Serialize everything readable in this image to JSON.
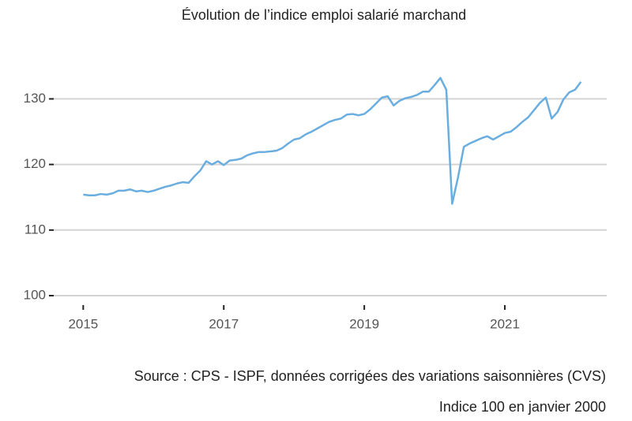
{
  "chart_data": {
    "type": "line",
    "title": "Évolution de l’indice emploi salarié marchand",
    "source": "Source : CPS - ISPF, données corrigées des variations saisonnières (CVS)",
    "note": "Indice 100 en janvier 2000",
    "x": [
      2015,
      2015.083,
      2015.167,
      2015.25,
      2015.333,
      2015.417,
      2015.5,
      2015.583,
      2015.667,
      2015.75,
      2015.833,
      2015.917,
      2016,
      2016.083,
      2016.167,
      2016.25,
      2016.333,
      2016.417,
      2016.5,
      2016.583,
      2016.667,
      2016.75,
      2016.833,
      2016.917,
      2017,
      2017.083,
      2017.167,
      2017.25,
      2017.333,
      2017.417,
      2017.5,
      2017.583,
      2017.667,
      2017.75,
      2017.833,
      2017.917,
      2018,
      2018.083,
      2018.167,
      2018.25,
      2018.333,
      2018.417,
      2018.5,
      2018.583,
      2018.667,
      2018.75,
      2018.833,
      2018.917,
      2019,
      2019.083,
      2019.167,
      2019.25,
      2019.333,
      2019.417,
      2019.5,
      2019.583,
      2019.667,
      2019.75,
      2019.833,
      2019.917,
      2020,
      2020.083,
      2020.167,
      2020.25,
      2020.333,
      2020.417,
      2020.5,
      2020.583,
      2020.667,
      2020.75,
      2020.833,
      2020.917,
      2021,
      2021.083,
      2021.167,
      2021.25,
      2021.333,
      2021.417,
      2021.5,
      2021.583,
      2021.667,
      2021.75,
      2021.833,
      2021.917,
      2022,
      2022.083
    ],
    "series": [
      {
        "color": "#6aaee0",
        "values": [
          115.4,
          115.3,
          115.3,
          115.5,
          115.4,
          115.6,
          116.0,
          116.0,
          116.2,
          115.9,
          116.0,
          115.8,
          116.0,
          116.3,
          116.6,
          116.8,
          117.1,
          117.3,
          117.2,
          118.2,
          119.1,
          120.5,
          120.0,
          120.5,
          119.9,
          120.6,
          120.7,
          120.9,
          121.4,
          121.7,
          121.9,
          121.9,
          122.0,
          122.1,
          122.5,
          123.2,
          123.8,
          124.0,
          124.6,
          125.0,
          125.5,
          126.0,
          126.5,
          126.8,
          127.0,
          127.6,
          127.7,
          127.5,
          127.7,
          128.4,
          129.3,
          130.2,
          130.4,
          129.0,
          129.7,
          130.1,
          130.3,
          130.6,
          131.1,
          131.1,
          132.1,
          133.2,
          131.4,
          114.0,
          118.0,
          122.7,
          123.2,
          123.6,
          124.0,
          124.3,
          123.8,
          124.3,
          124.8,
          125.0,
          125.7,
          126.5,
          127.2,
          128.3,
          129.4,
          130.2,
          127.0,
          128.0,
          129.9,
          131.0,
          131.4,
          132.6
        ]
      }
    ],
    "xlim": [
      2014.58,
      2022.45
    ],
    "xticks": [
      2015,
      2017,
      2019,
      2021
    ],
    "ylim": [
      100,
      134.5
    ],
    "yticks": [
      100,
      110,
      120,
      130
    ],
    "grid": true
  }
}
